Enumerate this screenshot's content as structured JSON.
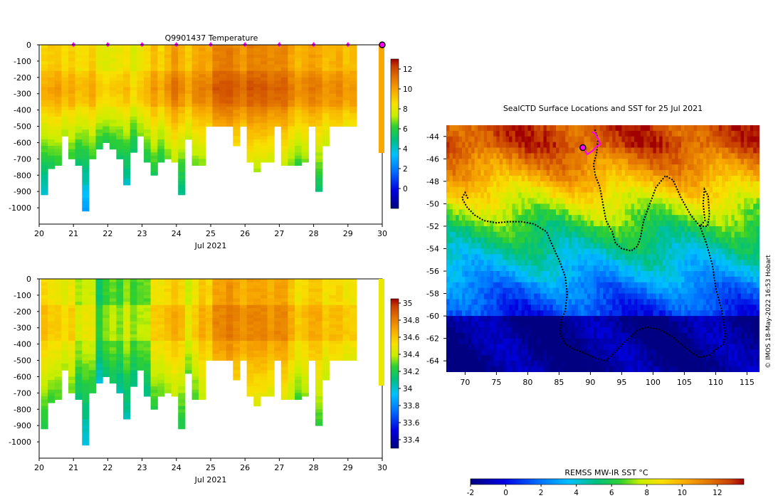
{
  "chart_data": [
    {
      "type": "heatmap",
      "title": "Q9901437  Temperature",
      "xlabel": "Jul 2021",
      "ylabel": "",
      "x_ticks": [
        "20",
        "21",
        "22",
        "23",
        "24",
        "25",
        "26",
        "27",
        "28",
        "29",
        "30"
      ],
      "xlim": [
        20,
        30
      ],
      "y_ticks": [
        "0",
        "-100",
        "-200",
        "-300",
        "-400",
        "-500",
        "-600",
        "-700",
        "-800",
        "-900",
        "-1000"
      ],
      "ylim": [
        -1100,
        0
      ],
      "colorbar_ticks": [
        "12",
        "10",
        "8",
        "6",
        "4",
        "2",
        "0"
      ],
      "colorbar_range": [
        -2,
        13
      ],
      "profile_days": [
        20.15,
        20.35,
        20.55,
        20.75,
        20.95,
        21.15,
        21.35,
        21.55,
        21.75,
        21.95,
        22.15,
        22.35,
        22.55,
        22.75,
        22.95,
        23.15,
        23.35,
        23.55,
        23.75,
        23.95,
        24.15,
        24.35,
        24.55,
        24.75,
        24.95,
        25.15,
        25.35,
        25.55,
        25.75,
        25.95,
        26.15,
        26.35,
        26.55,
        26.75,
        26.95,
        27.15,
        27.35,
        27.55,
        27.75,
        27.95,
        28.15,
        28.35,
        28.55,
        28.75,
        28.95,
        29.15
      ],
      "max_depth_m": [
        -910,
        -760,
        -740,
        -560,
        -700,
        -730,
        -1020,
        -700,
        -630,
        -600,
        -630,
        -700,
        -850,
        -650,
        -560,
        -710,
        -790,
        -720,
        -700,
        -720,
        -920,
        -580,
        -730,
        -740,
        -500,
        -500,
        -500,
        -500,
        -620,
        -500,
        -720,
        -770,
        -720,
        -720,
        -500,
        -730,
        -730,
        -730,
        -710,
        -500,
        -900,
        -620,
        -500,
        -500,
        -500,
        -500
      ],
      "surface_temp_c": [
        8.8,
        9.0,
        9.2,
        8.6,
        9.0,
        8.4,
        8.5,
        9.0,
        8.0,
        7.8,
        8.0,
        8.2,
        8.5,
        7.6,
        8.2,
        8.6,
        9.4,
        8.7,
        9.5,
        10.3,
        9.6,
        9.0,
        9.8,
        10.0,
        9.8,
        10.8,
        10.9,
        11.0,
        10.6,
        10.2,
        10.9,
        10.7,
        10.8,
        10.5,
        10.6,
        10.7,
        10.0,
        9.4,
        9.8,
        10.1,
        9.9,
        9.3,
        9.6,
        9.8,
        9.2,
        9.4
      ],
      "surface_markers_days": [
        21,
        22,
        23,
        24,
        25,
        26,
        27,
        28,
        29
      ]
    },
    {
      "type": "heatmap",
      "title": "",
      "xlabel": "Jul 2021",
      "ylabel": "",
      "x_ticks": [
        "20",
        "21",
        "22",
        "23",
        "24",
        "25",
        "26",
        "27",
        "28",
        "29",
        "30"
      ],
      "xlim": [
        20,
        30
      ],
      "y_ticks": [
        "0",
        "-100",
        "-200",
        "-300",
        "-400",
        "-500",
        "-600",
        "-700",
        "-800",
        "-900",
        "-1000"
      ],
      "ylim": [
        -1100,
        0
      ],
      "colorbar_ticks": [
        "35",
        "34.8",
        "34.6",
        "34.4",
        "34.2",
        "34",
        "33.8",
        "33.6",
        "33.4"
      ],
      "colorbar_range": [
        33.3,
        35.05
      ],
      "surface_salinity_psu": [
        34.55,
        34.5,
        34.5,
        34.45,
        34.5,
        34.35,
        34.4,
        34.4,
        34.15,
        34.25,
        34.3,
        34.25,
        34.35,
        34.25,
        34.3,
        34.3,
        34.5,
        34.5,
        34.55,
        34.6,
        34.55,
        34.4,
        34.5,
        34.6,
        34.55,
        34.7,
        34.7,
        34.75,
        34.7,
        34.65,
        34.7,
        34.7,
        34.7,
        34.65,
        34.7,
        34.7,
        34.6,
        34.5,
        34.55,
        34.6,
        34.6,
        34.5,
        34.55,
        34.55,
        34.5,
        34.5
      ]
    },
    {
      "type": "heatmap",
      "title": "SealCTD Surface Locations and SST for 25 Jul 2021",
      "xlabel": "",
      "ylabel": "",
      "x_ticks": [
        "70",
        "75",
        "80",
        "85",
        "90",
        "95",
        "100",
        "105",
        "110",
        "115"
      ],
      "xlim": [
        67,
        117
      ],
      "y_ticks": [
        "-44",
        "-46",
        "-48",
        "-50",
        "-52",
        "-54",
        "-56",
        "-58",
        "-60",
        "-62",
        "-64"
      ],
      "ylim": [
        -65,
        -43
      ],
      "colorbar_label": "REMSS MW-IR SST °C",
      "colorbar_ticks": [
        "-2",
        "0",
        "2",
        "4",
        "6",
        "8",
        "10",
        "12"
      ],
      "colorbar_range": [
        -2,
        13.5
      ],
      "track_lon_lat": [
        [
          90.7,
          -43.4
        ],
        [
          91.2,
          -44.2
        ],
        [
          91.0,
          -45.5
        ],
        [
          90.5,
          -46.5
        ],
        [
          90.8,
          -47.5
        ],
        [
          91.5,
          -48.5
        ],
        [
          92.0,
          -50.0
        ],
        [
          92.5,
          -51.5
        ],
        [
          93.5,
          -52.5
        ],
        [
          94.0,
          -53.5
        ],
        [
          95.0,
          -54.0
        ],
        [
          96.5,
          -54.2
        ],
        [
          97.5,
          -53.8
        ],
        [
          98.0,
          -53.0
        ],
        [
          98.5,
          -51.5
        ],
        [
          99.5,
          -50.0
        ],
        [
          100.5,
          -48.5
        ],
        [
          102.0,
          -47.5
        ],
        [
          103.2,
          -47.9
        ],
        [
          104.5,
          -49.5
        ],
        [
          106.0,
          -51.0
        ],
        [
          107.5,
          -52.0
        ],
        [
          108.3,
          -51.5
        ],
        [
          108.0,
          -50.0
        ],
        [
          108.2,
          -48.7
        ],
        [
          108.8,
          -49.3
        ],
        [
          109.0,
          -51.0
        ],
        [
          108.7,
          -52.0
        ],
        [
          107.5,
          -52.0
        ],
        [
          108.5,
          -53.5
        ],
        [
          109.5,
          -55.5
        ],
        [
          110.0,
          -57.5
        ],
        [
          111.0,
          -59.5
        ],
        [
          111.5,
          -61.5
        ],
        [
          111.3,
          -62.5
        ],
        [
          110.0,
          -63.0
        ],
        [
          109.0,
          -63.5
        ],
        [
          107.5,
          -63.7
        ],
        [
          106.0,
          -63.2
        ],
        [
          104.5,
          -62.5
        ],
        [
          103.0,
          -61.8
        ],
        [
          101.0,
          -61.2
        ],
        [
          99.0,
          -61.0
        ],
        [
          97.5,
          -61.3
        ],
        [
          95.5,
          -62.3
        ],
        [
          94.0,
          -63.2
        ],
        [
          92.5,
          -64.0
        ],
        [
          91.0,
          -63.8
        ],
        [
          89.0,
          -63.3
        ],
        [
          87.5,
          -63.0
        ],
        [
          86.0,
          -62.5
        ],
        [
          85.2,
          -61.7
        ],
        [
          85.3,
          -60.5
        ],
        [
          86.0,
          -59.5
        ],
        [
          86.3,
          -58.0
        ],
        [
          86.0,
          -56.5
        ],
        [
          85.0,
          -55.0
        ],
        [
          84.0,
          -53.8
        ],
        [
          83.0,
          -52.5
        ],
        [
          81.0,
          -51.8
        ],
        [
          79.0,
          -51.6
        ],
        [
          77.0,
          -51.6
        ],
        [
          75.0,
          -51.7
        ],
        [
          73.0,
          -51.5
        ],
        [
          71.5,
          -51.0
        ],
        [
          70.3,
          -50.3
        ],
        [
          69.5,
          -49.5
        ],
        [
          70.0,
          -49.0
        ],
        [
          70.5,
          -49.6
        ]
      ],
      "recent_track_lon_lat": [
        [
          88.8,
          -45.0
        ],
        [
          89.5,
          -45.6
        ],
        [
          90.3,
          -45.3
        ],
        [
          91.0,
          -44.9
        ],
        [
          91.6,
          -44.7
        ],
        [
          91.2,
          -44.2
        ],
        [
          90.7,
          -43.7
        ],
        [
          90.2,
          -43.6
        ]
      ],
      "latest_position_lon_lat": [
        88.8,
        -45.0
      ]
    }
  ],
  "credit": "© IMOS 18-May-2022 16:53 Hobart",
  "colors": {
    "marker": "#ff00ff",
    "track": "#000000"
  }
}
